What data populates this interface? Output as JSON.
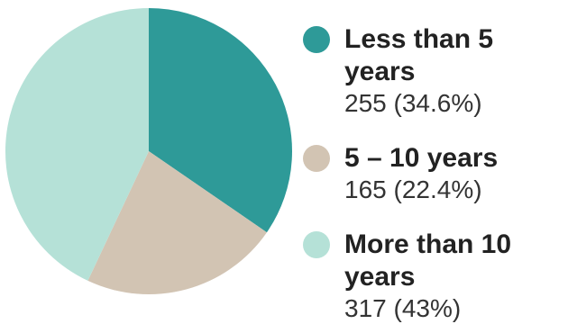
{
  "chart_data": {
    "type": "pie",
    "slices": [
      {
        "label": "Less than 5 years",
        "value": 255,
        "value_text": "255 (34.6%)",
        "color": "#2e9a98"
      },
      {
        "label": "5 – 10 years",
        "value": 165,
        "value_text": "165 (22.4%)",
        "color": "#d2c4b3"
      },
      {
        "label": "More than 10 years",
        "value": 317,
        "value_text": "317 (43%)",
        "color": "#b5e1d7"
      }
    ],
    "legend_position": "right"
  }
}
